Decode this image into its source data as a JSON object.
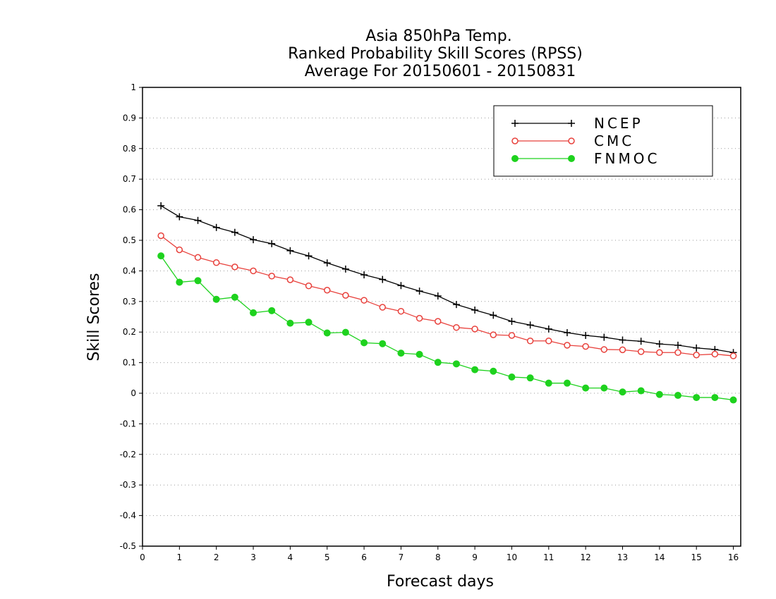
{
  "chart_data": {
    "type": "line",
    "title_lines": [
      "Asia 850hPa Temp.",
      "Ranked Probability Skill Scores (RPSS)",
      "Average For 20150601 - 20150831"
    ],
    "xlabel": "Forecast days",
    "ylabel": "Skill Scores",
    "xlim": [
      0,
      16.2
    ],
    "ylim": [
      -0.5,
      1
    ],
    "x_ticks": [
      0,
      1,
      2,
      3,
      4,
      5,
      6,
      7,
      8,
      9,
      10,
      11,
      12,
      13,
      14,
      15,
      16
    ],
    "y_ticks": [
      -0.5,
      -0.4,
      -0.3,
      -0.2,
      -0.1,
      0,
      0.1,
      0.2,
      0.3,
      0.4,
      0.5,
      0.6,
      0.7,
      0.8,
      0.9,
      1
    ],
    "y_tick_labels": [
      "-0.5",
      "-0.4",
      "-0.3",
      "-0.2",
      "-0.1",
      "0",
      "0.1",
      "0.2",
      "0.3",
      "0.4",
      "0.5",
      "0.6",
      "0.7",
      "0.8",
      "0.9",
      "1"
    ],
    "grid": "horizontal dotted",
    "legend_position": "top-right",
    "x": [
      0.5,
      1,
      1.5,
      2,
      2.5,
      3,
      3.5,
      4,
      4.5,
      5,
      5.5,
      6,
      6.5,
      7,
      7.5,
      8,
      8.5,
      9,
      9.5,
      10,
      10.5,
      11,
      11.5,
      12,
      12.5,
      13,
      13.5,
      14,
      14.5,
      15,
      15.5,
      16
    ],
    "series": [
      {
        "name": "NCEP",
        "color": "#000000",
        "marker": "plus",
        "values": [
          0.613,
          0.577,
          0.565,
          0.542,
          0.526,
          0.502,
          0.489,
          0.466,
          0.449,
          0.426,
          0.406,
          0.387,
          0.372,
          0.352,
          0.334,
          0.318,
          0.29,
          0.272,
          0.255,
          0.235,
          0.223,
          0.21,
          0.198,
          0.189,
          0.183,
          0.174,
          0.17,
          0.161,
          0.157,
          0.148,
          0.143,
          0.133
        ]
      },
      {
        "name": "CMC",
        "color": "#e8413c",
        "marker": "open-circle",
        "values": [
          0.515,
          0.469,
          0.444,
          0.427,
          0.413,
          0.4,
          0.383,
          0.371,
          0.351,
          0.337,
          0.32,
          0.304,
          0.281,
          0.268,
          0.245,
          0.235,
          0.215,
          0.21,
          0.191,
          0.189,
          0.171,
          0.171,
          0.157,
          0.153,
          0.143,
          0.142,
          0.136,
          0.133,
          0.133,
          0.125,
          0.128,
          0.122
        ]
      },
      {
        "name": "FNMOC",
        "color": "#1ed21e",
        "marker": "filled-circle",
        "values": [
          0.449,
          0.363,
          0.368,
          0.307,
          0.314,
          0.263,
          0.27,
          0.229,
          0.232,
          0.197,
          0.199,
          0.165,
          0.162,
          0.131,
          0.127,
          0.101,
          0.096,
          0.077,
          0.072,
          0.053,
          0.05,
          0.033,
          0.033,
          0.017,
          0.017,
          0.004,
          0.008,
          -0.004,
          -0.007,
          -0.014,
          -0.014,
          -0.022
        ]
      }
    ]
  }
}
